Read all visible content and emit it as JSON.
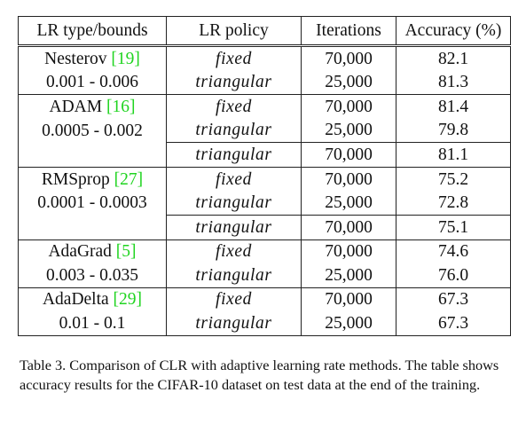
{
  "table": {
    "headers": [
      "LR type/bounds",
      "LR policy",
      "Iterations",
      "Accuracy (%)"
    ],
    "rows": [
      {
        "type": "Nesterov",
        "ref": "[19]",
        "policy": "fixed",
        "iterations": "70,000",
        "accuracy": "82.1",
        "group_start": true
      },
      {
        "type": "0.001 - 0.006",
        "ref": "",
        "policy": "triangular",
        "iterations": "25,000",
        "accuracy": "81.3",
        "group_start": false
      },
      {
        "type": "ADAM",
        "ref": "[16]",
        "policy": "fixed",
        "iterations": "70,000",
        "accuracy": "81.4",
        "group_start": true
      },
      {
        "type": "0.0005 - 0.002",
        "ref": "",
        "policy": "triangular",
        "iterations": "25,000",
        "accuracy": "79.8",
        "group_start": false
      },
      {
        "type": "",
        "ref": "",
        "policy": "triangular",
        "iterations": "70,000",
        "accuracy": "81.1",
        "group_start": true,
        "no_top_first": true
      },
      {
        "type": "RMSprop",
        "ref": "[27]",
        "policy": "fixed",
        "iterations": "70,000",
        "accuracy": "75.2",
        "group_start": true
      },
      {
        "type": "0.0001 - 0.0003",
        "ref": "",
        "policy": "triangular",
        "iterations": "25,000",
        "accuracy": "72.8",
        "group_start": false
      },
      {
        "type": "",
        "ref": "",
        "policy": "triangular",
        "iterations": "70,000",
        "accuracy": "75.1",
        "group_start": true,
        "no_top_first": true
      },
      {
        "type": "AdaGrad",
        "ref": "[5]",
        "policy": "fixed",
        "iterations": "70,000",
        "accuracy": "74.6",
        "group_start": true
      },
      {
        "type": "0.003 - 0.035",
        "ref": "",
        "policy": "triangular",
        "iterations": "25,000",
        "accuracy": "76.0",
        "group_start": false
      },
      {
        "type": "AdaDelta",
        "ref": "[29]",
        "policy": "fixed",
        "iterations": "70,000",
        "accuracy": "67.3",
        "group_start": true
      },
      {
        "type": "0.01 - 0.1",
        "ref": "",
        "policy": "triangular",
        "iterations": "25,000",
        "accuracy": "67.3",
        "group_start": false
      }
    ]
  },
  "caption": "Table 3. Comparison of CLR with adaptive learning rate methods. The table shows accuracy results for the CIFAR-10 dataset on test data at the end of the training.",
  "colors": {
    "text": "#111111",
    "reference": "#1fd41f",
    "rule": "#222222"
  },
  "chart_data": {
    "type": "table",
    "columns": [
      "LR type/bounds",
      "LR policy",
      "Iterations",
      "Accuracy (%)"
    ],
    "rows": [
      [
        "Nesterov [19]",
        "fixed",
        "70,000",
        82.1
      ],
      [
        "0.001 - 0.006",
        "triangular",
        "25,000",
        81.3
      ],
      [
        "ADAM [16]",
        "fixed",
        "70,000",
        81.4
      ],
      [
        "0.0005 - 0.002",
        "triangular",
        "25,000",
        79.8
      ],
      [
        "",
        "triangular",
        "70,000",
        81.1
      ],
      [
        "RMSprop [27]",
        "fixed",
        "70,000",
        75.2
      ],
      [
        "0.0001 - 0.0003",
        "triangular",
        "25,000",
        72.8
      ],
      [
        "",
        "triangular",
        "70,000",
        75.1
      ],
      [
        "AdaGrad [5]",
        "fixed",
        "70,000",
        74.6
      ],
      [
        "0.003 - 0.035",
        "triangular",
        "25,000",
        76.0
      ],
      [
        "AdaDelta [29]",
        "fixed",
        "70,000",
        67.3
      ],
      [
        "0.01 - 0.1",
        "triangular",
        "25,000",
        67.3
      ]
    ],
    "title": "Table 3. Comparison of CLR with adaptive learning rate methods. The table shows accuracy results for the CIFAR-10 dataset on test data at the end of the training."
  }
}
